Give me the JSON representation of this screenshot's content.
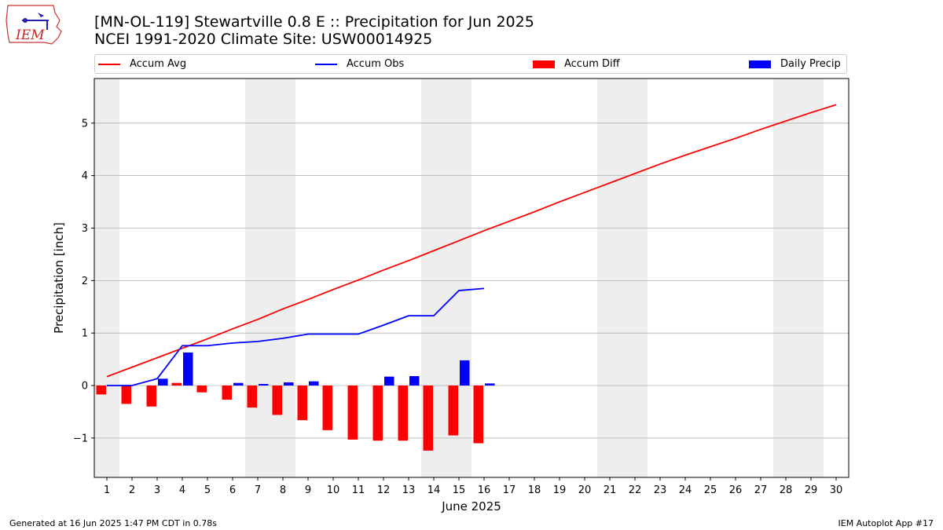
{
  "header": {
    "title_line1": "[MN-OL-119] Stewartville 0.8 E :: Precipitation for Jun 2025",
    "title_line2": "NCEI 1991-2020 Climate Site: USW00014925",
    "logo_text": "IEM"
  },
  "colors": {
    "accum_avg": "#ff0000",
    "accum_obs": "#0000ff",
    "accum_diff": "#ff0000",
    "daily_precip": "#0000ff",
    "weekend_band": "#eeeeee",
    "grid": "#b0b0b0"
  },
  "legend": [
    {
      "label": "Accum Avg",
      "kind": "line",
      "color": "#ff0000"
    },
    {
      "label": "Accum Obs",
      "kind": "line",
      "color": "#0000ff"
    },
    {
      "label": "Accum Diff",
      "kind": "box",
      "color": "#ff0000"
    },
    {
      "label": "Daily Precip",
      "kind": "box",
      "color": "#0000ff"
    }
  ],
  "chart_data": {
    "type": "line",
    "xlabel": "June 2025",
    "ylabel": "Precipitation [inch]",
    "xlim": [
      0.5,
      30.5
    ],
    "ylim": [
      -1.75,
      5.85
    ],
    "x_ticks": [
      1,
      2,
      3,
      4,
      5,
      6,
      7,
      8,
      9,
      10,
      11,
      12,
      13,
      14,
      15,
      16,
      17,
      18,
      19,
      20,
      21,
      22,
      23,
      24,
      25,
      26,
      27,
      28,
      29,
      30
    ],
    "y_ticks": [
      -1,
      0,
      1,
      2,
      3,
      4,
      5
    ],
    "y_tick_labels": [
      "−1",
      "0",
      "1",
      "2",
      "3",
      "4",
      "5"
    ],
    "grid": "horizontal",
    "legend_position": "top",
    "weekend_days": [
      1,
      7,
      8,
      14,
      15,
      21,
      22,
      28,
      29
    ],
    "accum_avg": {
      "name": "Accum Avg",
      "x": [
        1,
        2,
        3,
        4,
        5,
        6,
        7,
        8,
        9,
        10,
        11,
        12,
        13,
        14,
        15,
        16,
        17,
        18,
        19,
        20,
        21,
        22,
        23,
        24,
        25,
        26,
        27,
        28,
        29,
        30
      ],
      "values": [
        0.17,
        0.35,
        0.53,
        0.71,
        0.89,
        1.08,
        1.26,
        1.46,
        1.64,
        1.83,
        2.01,
        2.2,
        2.38,
        2.57,
        2.76,
        2.95,
        3.13,
        3.31,
        3.5,
        3.68,
        3.86,
        4.04,
        4.22,
        4.39,
        4.55,
        4.71,
        4.88,
        5.04,
        5.2,
        5.35
      ]
    },
    "accum_obs": {
      "name": "Accum Obs",
      "x": [
        1,
        2,
        3,
        4,
        5,
        6,
        7,
        8,
        9,
        10,
        11,
        12,
        13,
        14,
        15,
        16
      ],
      "values": [
        0.0,
        0.0,
        0.13,
        0.76,
        0.76,
        0.81,
        0.84,
        0.9,
        0.98,
        0.98,
        0.98,
        1.15,
        1.33,
        1.33,
        1.81,
        1.85
      ]
    },
    "accum_diff": {
      "name": "Accum Diff",
      "x": [
        1,
        2,
        3,
        4,
        5,
        6,
        7,
        8,
        9,
        10,
        11,
        12,
        13,
        14,
        15,
        16
      ],
      "values": [
        -0.17,
        -0.35,
        -0.4,
        0.05,
        -0.13,
        -0.27,
        -0.42,
        -0.56,
        -0.66,
        -0.85,
        -1.03,
        -1.05,
        -1.05,
        -1.24,
        -0.95,
        -1.1
      ]
    },
    "daily_precip": {
      "name": "Daily Precip",
      "x": [
        1,
        2,
        3,
        4,
        5,
        6,
        7,
        8,
        9,
        10,
        11,
        12,
        13,
        14,
        15,
        16
      ],
      "values": [
        0,
        0,
        0.13,
        0.63,
        0,
        0.05,
        0.03,
        0.06,
        0.08,
        0,
        0,
        0.17,
        0.18,
        0,
        0.48,
        0.04
      ]
    }
  },
  "footer": {
    "generated": "Generated at 16 Jun 2025 1:47 PM CDT in 0.78s",
    "app": "IEM Autoplot App #17"
  }
}
